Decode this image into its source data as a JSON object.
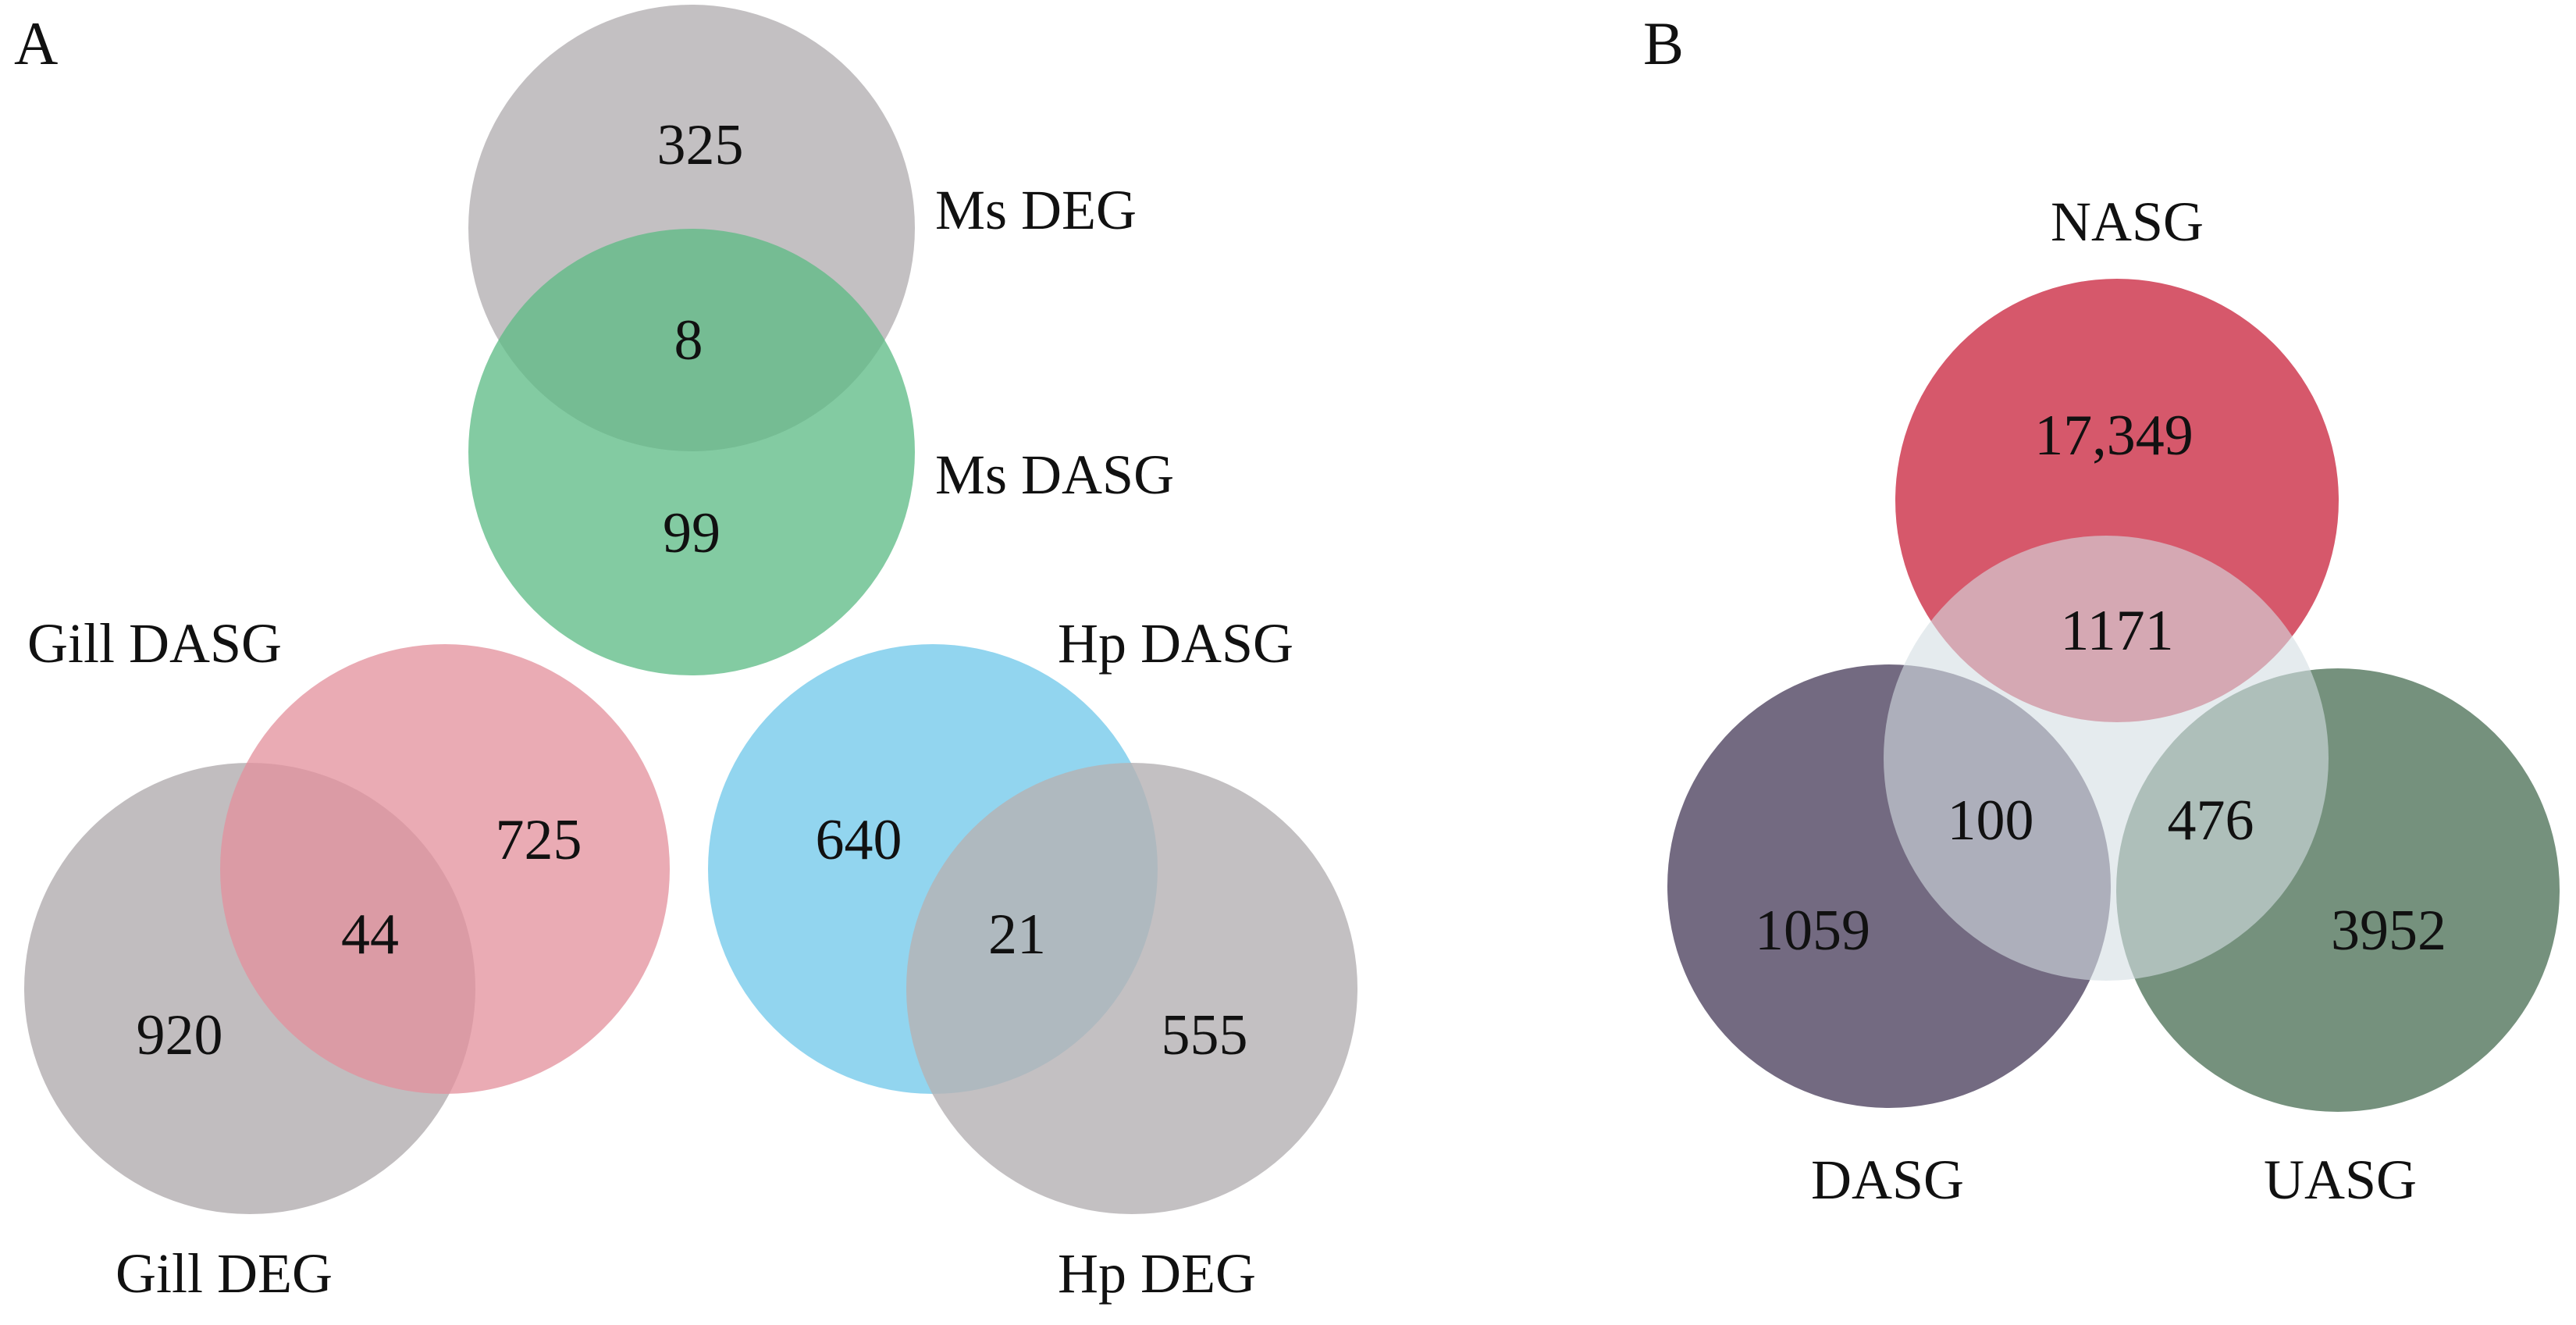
{
  "panel_a": {
    "letter": "A",
    "ms": {
      "deg_label": "Ms DEG",
      "dasg_label": "Ms DASG",
      "deg_only": "325",
      "shared": "8",
      "dasg_only": "99"
    },
    "gill": {
      "dasg_label": "Gill DASG",
      "deg_label": "Gill DEG",
      "dasg_only": "725",
      "shared": "44",
      "deg_only": "920"
    },
    "hp": {
      "dasg_label": "Hp DASG",
      "deg_label": "Hp DEG",
      "dasg_only": "640",
      "shared": "21",
      "deg_only": "555"
    }
  },
  "panel_b": {
    "letter": "B",
    "labels": {
      "nasg": "NASG",
      "dasg": "DASG",
      "uasg": "UASG"
    },
    "values": {
      "nasg_only": "17,349",
      "nasg_center": "1171",
      "dasg_center": "100",
      "uasg_center": "476",
      "dasg_only": "1059",
      "uasg_only": "3952"
    }
  },
  "colors": {
    "deg_gray": "#b6b2b4",
    "ms_dasg_green": "#5cbb85",
    "gill_dasg_pink": "#e3909c",
    "hp_dasg_blue": "#6cc6ea",
    "nasg_red": "#d24a5e",
    "dasg_purple": "#605570",
    "uasg_green": "#62826b",
    "center_light": "#d3dde3"
  }
}
